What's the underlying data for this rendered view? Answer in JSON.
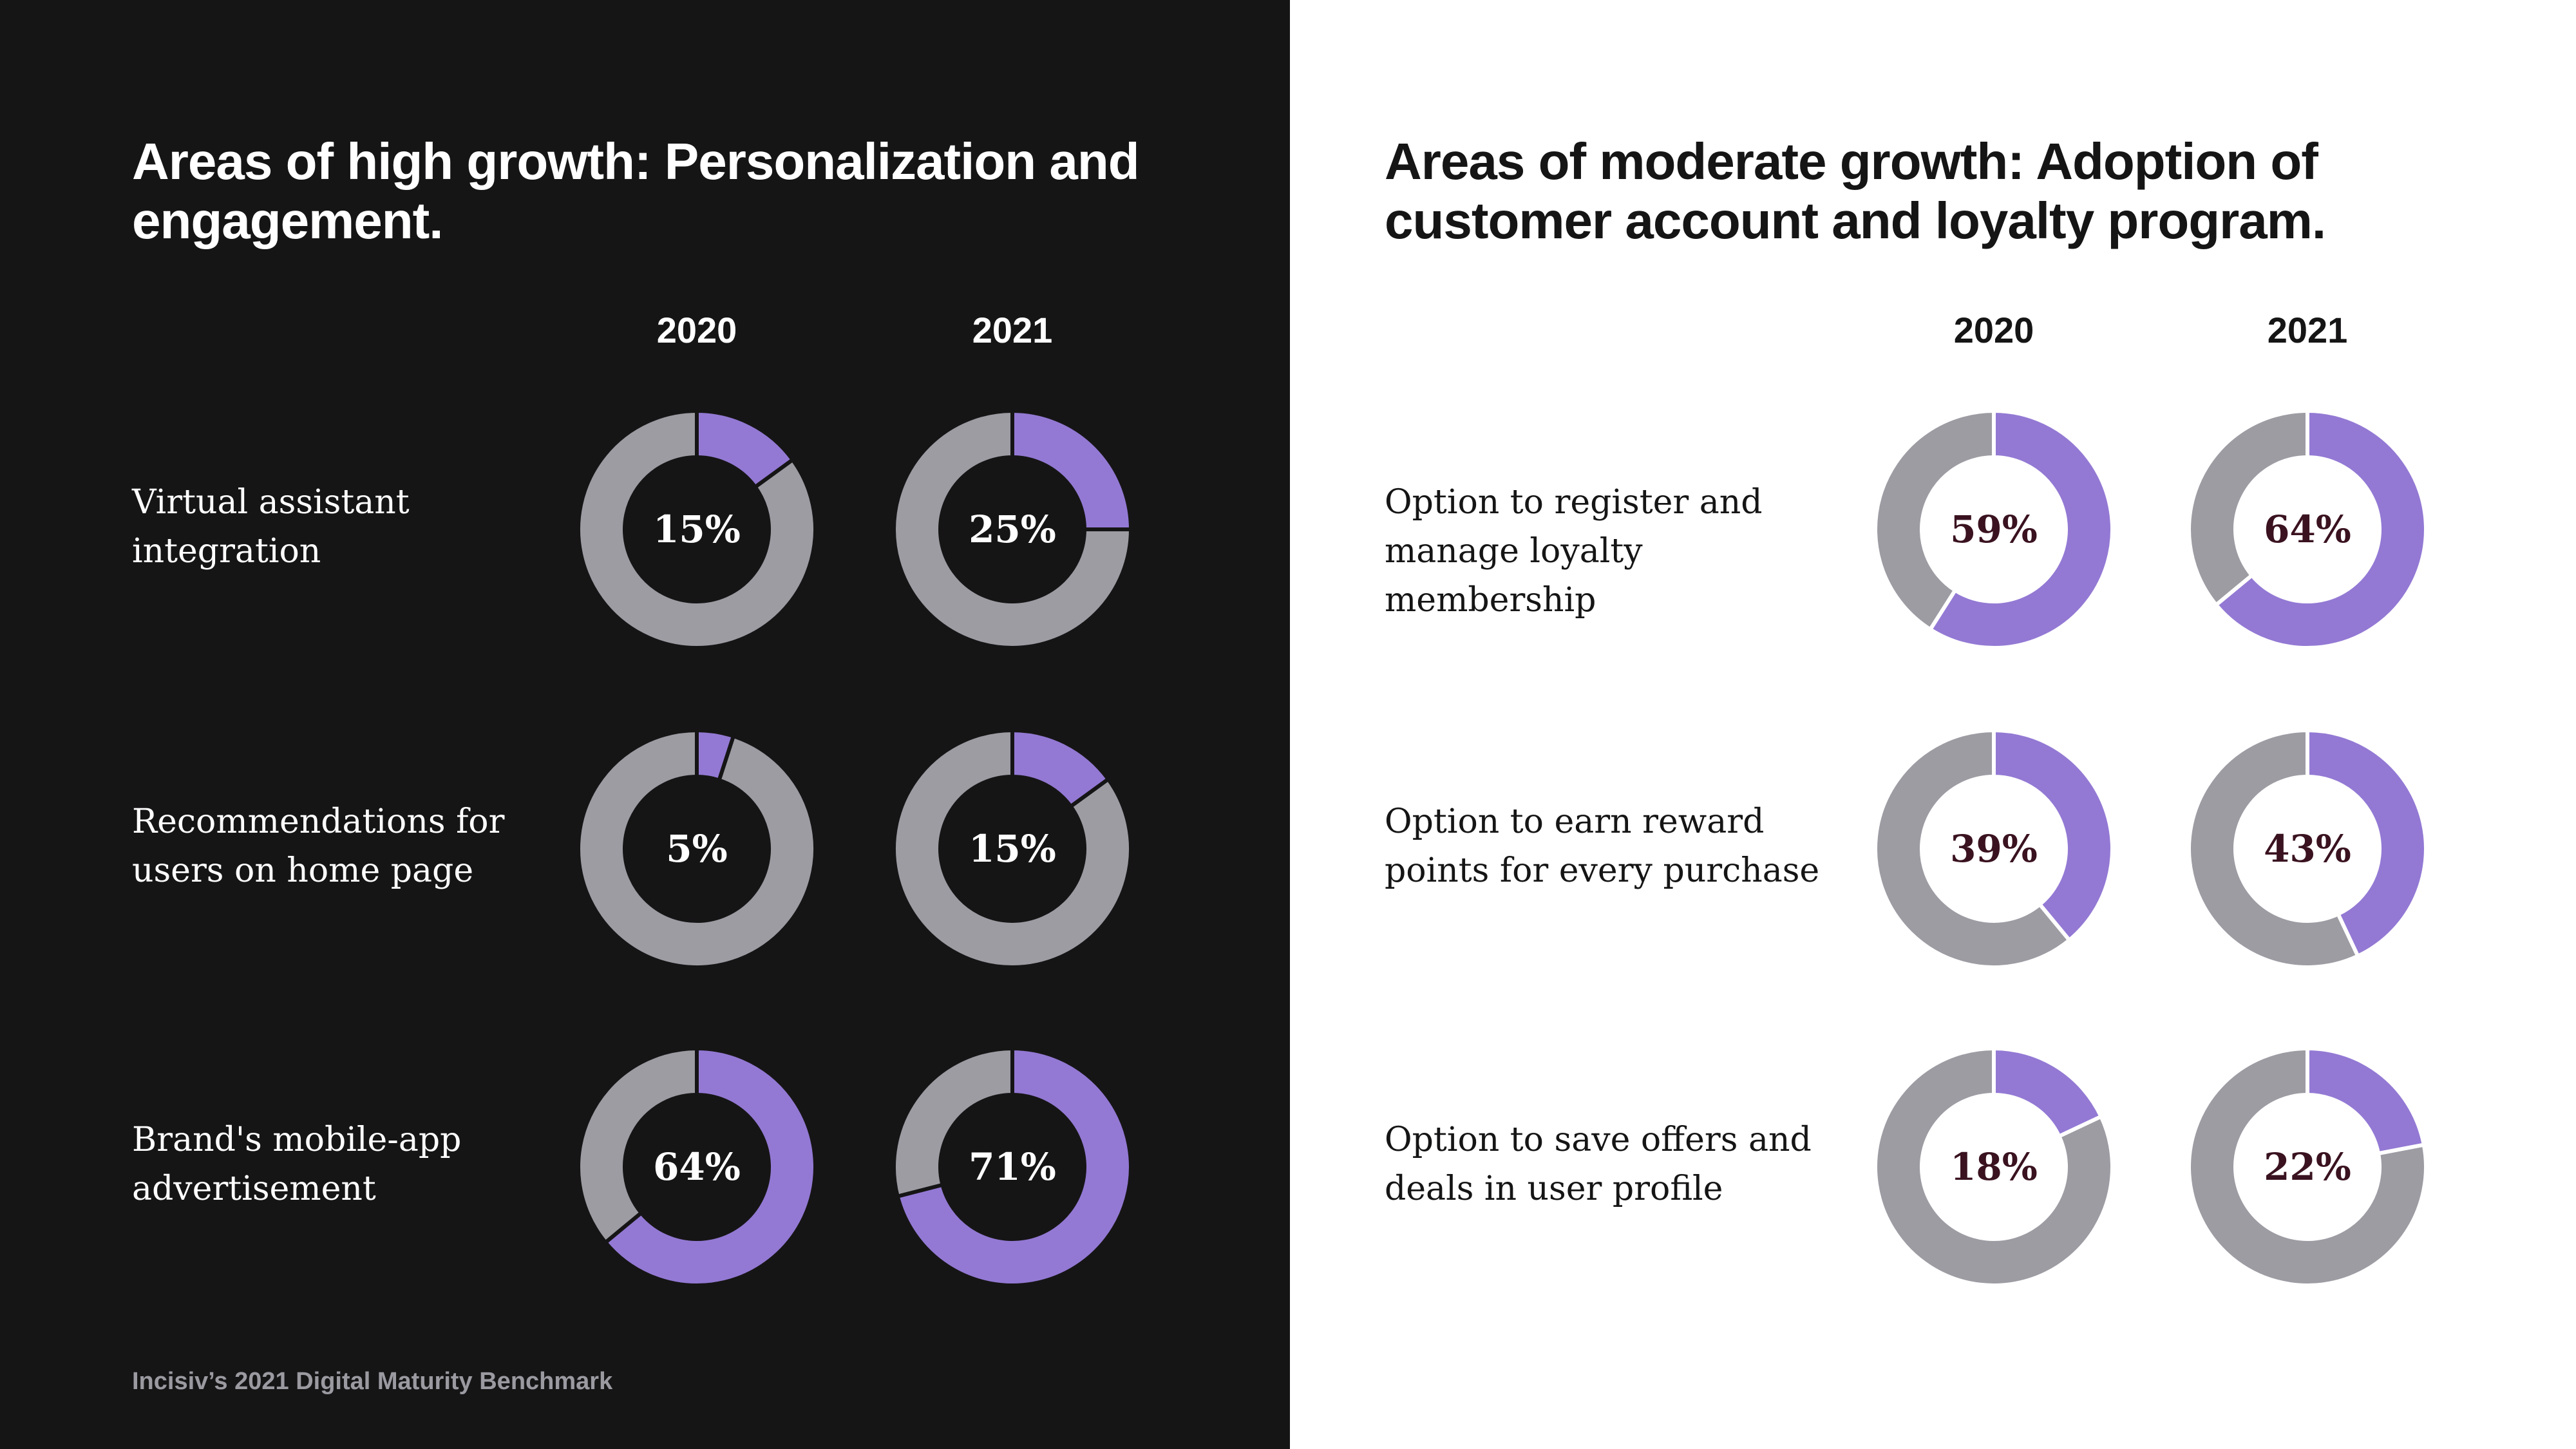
{
  "colors": {
    "filled": "#9379d4",
    "remaining": "#9d9ca3",
    "dark_bg": "#161516",
    "light_bg": "#ffffff"
  },
  "left": {
    "title": "Areas of high growth: Personalization and engagement.",
    "years": [
      "2020",
      "2021"
    ],
    "rows": [
      {
        "label": "Virtual assistant integration"
      },
      {
        "label": "Recommendations for users on home page"
      },
      {
        "label": "Brand's mobile-app advertisement"
      }
    ],
    "source": "Incisiv’s 2021 Digital Maturity Benchmark"
  },
  "right": {
    "title": "Areas of moderate growth: Adoption of customer account and loyalty program.",
    "years": [
      "2020",
      "2021"
    ],
    "rows": [
      {
        "label": "Option to register and manage loyalty membership"
      },
      {
        "label": "Option to earn reward points for every purchase"
      },
      {
        "label": "Option to save offers and deals in user profile"
      }
    ]
  },
  "chart_data": [
    {
      "type": "pie",
      "title": "Areas of high growth: Personalization and engagement.",
      "categories": [
        "Virtual assistant integration",
        "Recommendations for users on home page",
        "Brand's mobile-app advertisement"
      ],
      "series": [
        {
          "name": "2020",
          "values": [
            15,
            5,
            64
          ],
          "labels": [
            "15%",
            "5%",
            "64%"
          ]
        },
        {
          "name": "2021",
          "values": [
            25,
            15,
            71
          ],
          "labels": [
            "25%",
            "15%",
            "71%"
          ]
        }
      ]
    },
    {
      "type": "pie",
      "title": "Areas of moderate growth: Adoption of customer account and loyalty program.",
      "categories": [
        "Option to register and manage loyalty membership",
        "Option to earn reward points for every purchase",
        "Option to save offers and deals in user profile"
      ],
      "series": [
        {
          "name": "2020",
          "values": [
            59,
            39,
            18
          ],
          "labels": [
            "59%",
            "39%",
            "18%"
          ]
        },
        {
          "name": "2021",
          "values": [
            64,
            43,
            22
          ],
          "labels": [
            "64%",
            "43%",
            "22%"
          ]
        }
      ]
    }
  ]
}
